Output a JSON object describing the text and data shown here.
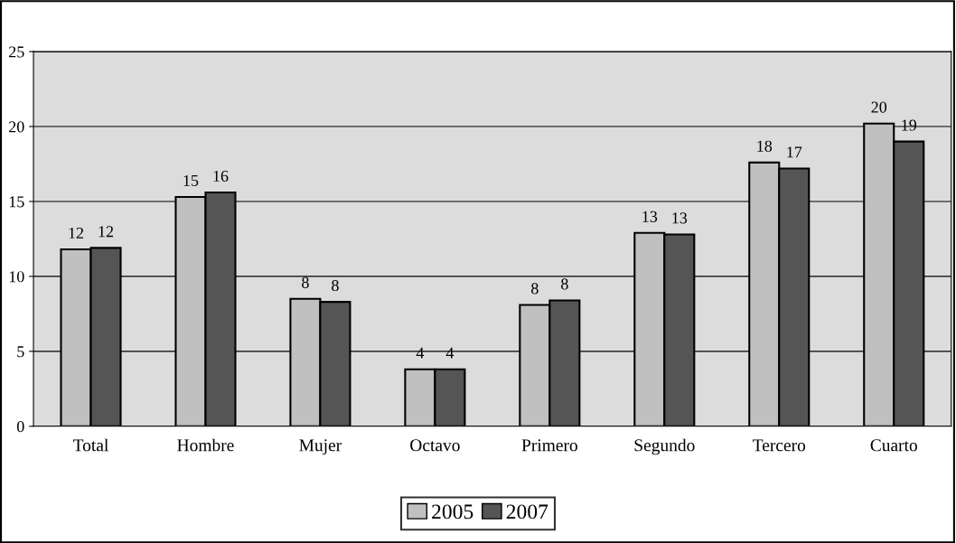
{
  "chart_data": {
    "type": "bar",
    "categories": [
      "Total",
      "Hombre",
      "Mujer",
      "Octavo",
      "Primero",
      "Segundo",
      "Tercero",
      "Cuarto"
    ],
    "series": [
      {
        "name": "2005",
        "color": "#c0c0c0",
        "values": [
          11.8,
          15.3,
          8.5,
          3.8,
          8.1,
          12.9,
          17.6,
          20.2
        ],
        "value_labels": [
          "12",
          "15",
          "8",
          "4",
          "8",
          "13",
          "18",
          "20"
        ]
      },
      {
        "name": "2007",
        "color": "#555555",
        "values": [
          11.9,
          15.6,
          8.3,
          3.8,
          8.4,
          12.8,
          17.2,
          19.0
        ],
        "value_labels": [
          "12",
          "16",
          "8",
          "4",
          "8",
          "13",
          "17",
          "19"
        ]
      }
    ],
    "ylim": [
      0,
      25
    ],
    "yticks": [
      0,
      5,
      10,
      15,
      20,
      25
    ],
    "grid": "y",
    "legend": "bottom"
  }
}
